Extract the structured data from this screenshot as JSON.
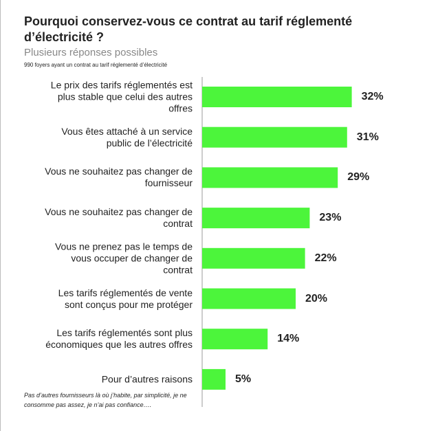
{
  "chart_data": {
    "type": "bar",
    "orientation": "horizontal",
    "title": "Pourquoi conservez-vous ce contrat au tarif réglementé d’électricité ?",
    "subtitle": "Plusieurs réponses possibles",
    "note": "990 foyers ayant un contrat au tarif réglementé d’électricité",
    "categories": [
      "Le prix des tarifs réglementés est\nplus stable que celui des autres\noffres",
      "Vous êtes attaché à un service\npublic de l’électricité",
      "Vous ne souhaitez pas changer de\nfournisseur",
      "Vous ne souhaitez pas changer de\ncontrat",
      "Vous ne prenez pas le temps de\nvous occuper de changer de\ncontrat",
      "Les tarifs réglementés de vente\nsont conçus pour me protéger",
      "Les tarifs réglementés sont plus\néconomiques que les autres offres",
      "Pour d’autres raisons"
    ],
    "values": [
      32,
      31,
      29,
      23,
      22,
      20,
      14,
      5
    ],
    "value_labels": [
      "32%",
      "31%",
      "29%",
      "23%",
      "22%",
      "20%",
      "14%",
      "5%"
    ],
    "color": "#4cf53b",
    "footnote": "Pas d’autres fournisseurs là où j’habite, par simplicité, je ne consomme pas assez, je n’ai pas confiance…."
  }
}
